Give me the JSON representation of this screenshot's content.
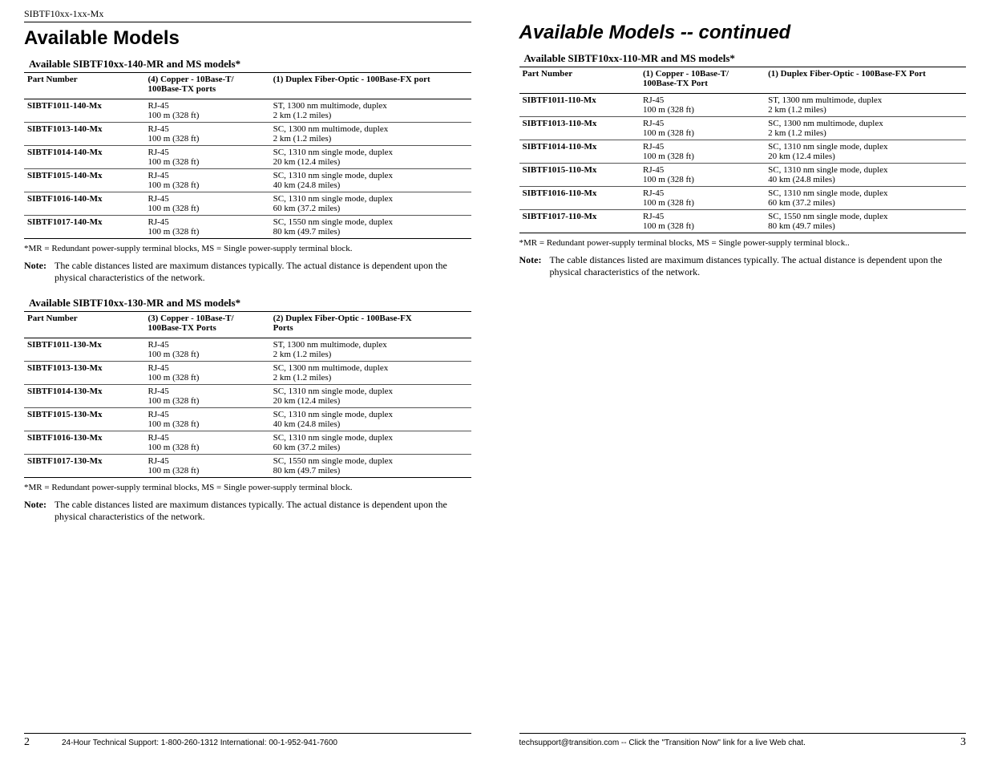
{
  "doc_header": "SIBTF10xx-1xx-Mx",
  "left": {
    "title": "Available Models",
    "section1": {
      "caption": "Available SIBTF10xx-140-MR and MS models*",
      "col1": "Part Number",
      "col2a": "(4) Copper - 10Base-T/",
      "col2b": "100Base-TX ports",
      "col3": "(1) Duplex Fiber-Optic - 100Base-FX port",
      "rows": [
        {
          "pn": "SIBTF1011-140-Mx",
          "c1": "RJ-45",
          "c2": "100 m (328 ft)",
          "f1": "ST, 1300 nm multimode, duplex",
          "f2": "2 km (1.2 miles)"
        },
        {
          "pn": "SIBTF1013-140-Mx",
          "c1": "RJ-45",
          "c2": "100 m (328 ft)",
          "f1": "SC, 1300 nm multimode, duplex",
          "f2": "2 km (1.2 miles)"
        },
        {
          "pn": "SIBTF1014-140-Mx",
          "c1": "RJ-45",
          "c2": "100 m (328 ft)",
          "f1": "SC, 1310 nm single mode, duplex",
          "f2": "20 km (12.4 miles)"
        },
        {
          "pn": "SIBTF1015-140-Mx",
          "c1": "RJ-45",
          "c2": "100 m (328 ft)",
          "f1": "SC, 1310 nm single mode, duplex",
          "f2": "40 km (24.8 miles)"
        },
        {
          "pn": "SIBTF1016-140-Mx",
          "c1": "RJ-45",
          "c2": "100 m (328 ft)",
          "f1": "SC, 1310 nm single mode, duplex",
          "f2": "60 km (37.2 miles)"
        },
        {
          "pn": "SIBTF1017-140-Mx",
          "c1": "RJ-45",
          "c2": "100 m (328 ft)",
          "f1": "SC, 1550 nm single mode, duplex",
          "f2": "80 km (49.7 miles)"
        }
      ],
      "footnote": "*MR = Redundant power-supply terminal blocks,  MS = Single power-supply terminal block.",
      "note_label": "Note:",
      "note_text": "The cable distances listed are maximum distances typically. The actual distance is dependent upon the physical characteristics of the network."
    },
    "section2": {
      "caption": "Available SIBTF10xx-130-MR and MS models*",
      "col1": "Part Number",
      "col2a": "(3) Copper - 10Base-T/",
      "col2b": "100Base-TX Ports",
      "col3a": "(2) Duplex Fiber-Optic - 100Base-FX",
      "col3b": "Ports",
      "rows": [
        {
          "pn": "SIBTF1011-130-Mx",
          "c1": "RJ-45",
          "c2": "100 m (328 ft)",
          "f1": "ST, 1300 nm multimode, duplex",
          "f2": "2 km (1.2 miles)"
        },
        {
          "pn": "SIBTF1013-130-Mx",
          "c1": "RJ-45",
          "c2": "100 m (328 ft)",
          "f1": "SC, 1300 nm multimode, duplex",
          "f2": "2 km (1.2 miles)"
        },
        {
          "pn": "SIBTF1014-130-Mx",
          "c1": "RJ-45",
          "c2": "100 m (328 ft)",
          "f1": "SC, 1310 nm single mode, duplex",
          "f2": "20 km (12.4 miles)"
        },
        {
          "pn": "SIBTF1015-130-Mx",
          "c1": "RJ-45",
          "c2": "100 m (328 ft)",
          "f1": "SC, 1310 nm single mode, duplex",
          "f2": "40 km (24.8 miles)"
        },
        {
          "pn": "SIBTF1016-130-Mx",
          "c1": "RJ-45",
          "c2": "100 m (328 ft)",
          "f1": "SC, 1310 nm single mode, duplex",
          "f2": "60 km (37.2 miles)"
        },
        {
          "pn": "SIBTF1017-130-Mx",
          "c1": "RJ-45",
          "c2": "100 m (328 ft)",
          "f1": "SC, 1550 nm single mode, duplex",
          "f2": "80 km (49.7 miles)"
        }
      ],
      "footnote": "*MR = Redundant power-supply terminal blocks,  MS = Single power-supply terminal block.",
      "note_label": "Note:",
      "note_text": "The cable distances listed are maximum distances typically. The actual distance is dependent upon the physical characteristics of the network."
    },
    "footer_page": "2",
    "footer_text": "24-Hour Technical Support: 1-800-260-1312  International: 00-1-952-941-7600"
  },
  "right": {
    "title": "Available Models -- continued",
    "section1": {
      "caption": "Available SIBTF10xx-110-MR and MS models*",
      "col1": "Part Number",
      "col2a": "(1) Copper - 10Base-T/",
      "col2b": "100Base-TX Port",
      "col3": "(1) Duplex Fiber-Optic - 100Base-FX Port",
      "rows": [
        {
          "pn": "SIBTF1011-110-Mx",
          "c1": "RJ-45",
          "c2": "100 m (328 ft)",
          "f1": "ST, 1300 nm multimode, duplex",
          "f2": "2 km (1.2 miles)"
        },
        {
          "pn": "SIBTF1013-110-Mx",
          "c1": "RJ-45",
          "c2": "100 m (328 ft)",
          "f1": "SC, 1300 nm multimode, duplex",
          "f2": "2 km (1.2 miles)"
        },
        {
          "pn": "SIBTF1014-110-Mx",
          "c1": "RJ-45",
          "c2": "100 m (328 ft)",
          "f1": "SC, 1310 nm single mode, duplex",
          "f2": "20 km (12.4 miles)"
        },
        {
          "pn": "SIBTF1015-110-Mx",
          "c1": "RJ-45",
          "c2": "100 m (328 ft)",
          "f1": "SC, 1310 nm single mode, duplex",
          "f2": "40 km (24.8 miles)"
        },
        {
          "pn": "SIBTF1016-110-Mx",
          "c1": "RJ-45",
          "c2": "100 m (328 ft)",
          "f1": "SC, 1310 nm single mode, duplex",
          "f2": "60 km (37.2 miles)"
        },
        {
          "pn": "SIBTF1017-110-Mx",
          "c1": "RJ-45",
          "c2": "100 m (328 ft)",
          "f1": "SC, 1550 nm single mode, duplex",
          "f2": "80 km (49.7 miles)"
        }
      ],
      "footnote": "*MR = Redundant power-supply terminal blocks,  MS = Single power-supply terminal block..",
      "note_label": "Note:",
      "note_text": "The cable distances listed are maximum distances typically. The actual distance is dependent upon the physical characteristics of the network."
    },
    "footer_page": "3",
    "footer_text": "techsupport@transition.com -- Click the \"Transition Now\" link for a live Web chat."
  }
}
